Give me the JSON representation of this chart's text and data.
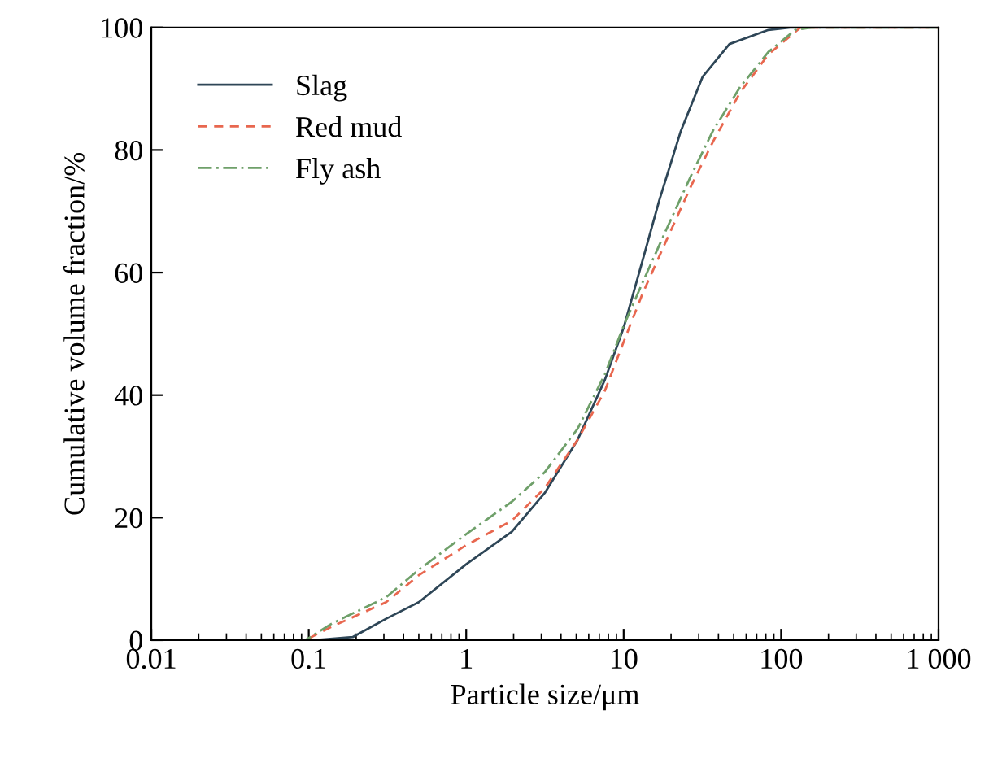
{
  "chart_data": {
    "type": "line",
    "xlabel": "Particle size/μm",
    "ylabel": "Cumulative volume fraction/%",
    "log": "x",
    "xlim": [
      0.01,
      1000
    ],
    "ylim": [
      0,
      100
    ],
    "xticks": [
      0.01,
      0.1,
      1,
      10,
      100,
      {
        "value": 1000,
        "label": "1 000"
      }
    ],
    "yticks": [
      0,
      20,
      40,
      60,
      80,
      100
    ],
    "grid": false,
    "legend": "top left",
    "series": [
      {
        "name": "Slag",
        "color": "#2e4657",
        "line_style": "solid",
        "x": [
          0.11,
          0.19,
          0.31,
          0.5,
          1,
          1.95,
          3.15,
          5.1,
          7.6,
          10,
          13.2,
          16.8,
          23,
          31.8,
          47,
          83,
          114,
          1000
        ],
        "values": [
          0,
          0.5,
          3.5,
          6.2,
          12.4,
          17.7,
          24,
          32.7,
          42.5,
          51,
          62,
          71.7,
          83,
          92,
          97.3,
          99.6,
          100,
          100
        ]
      },
      {
        "name": "Red mud",
        "color": "#e8674f",
        "line_style": "dashed",
        "x": [
          0.02,
          0.095,
          0.14,
          0.31,
          0.5,
          1,
          1.95,
          3.15,
          5.1,
          7.6,
          10,
          13.2,
          18.2,
          27,
          37,
          55,
          83,
          133,
          1000
        ],
        "values": [
          0,
          0,
          2.2,
          6.2,
          10.6,
          15.5,
          19.5,
          24.8,
          32.7,
          40.7,
          48.7,
          56.6,
          64.6,
          74.3,
          81.4,
          89.4,
          95.6,
          100,
          100
        ]
      },
      {
        "name": "Fly ash",
        "color": "#6fa06a",
        "line_style": "dashdot",
        "x": [
          0.02,
          0.095,
          0.14,
          0.31,
          0.5,
          1,
          1.95,
          3.15,
          5.1,
          7.6,
          10,
          13.2,
          18.2,
          27,
          37,
          55,
          83,
          123,
          156,
          1000
        ],
        "values": [
          0,
          0,
          2.7,
          7,
          11.5,
          17.3,
          22.6,
          27.4,
          34.5,
          43.4,
          51.3,
          58.4,
          66.4,
          76,
          83.2,
          90.3,
          96,
          99.6,
          100,
          100
        ]
      }
    ]
  }
}
